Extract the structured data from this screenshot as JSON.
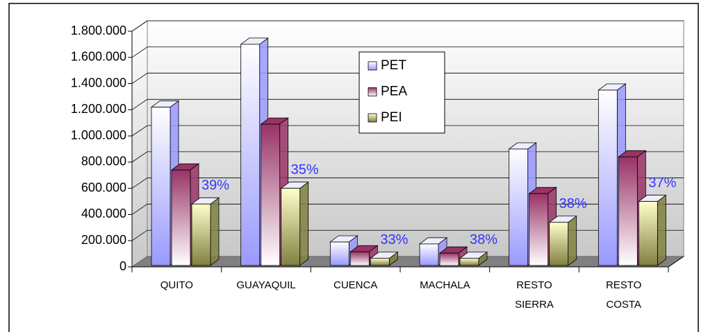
{
  "chart_data": {
    "type": "bar3d",
    "categories": [
      "QUITO",
      "GUAYAQUIL",
      "CUENCA",
      "MACHALA",
      "RESTO SIERRA",
      "RESTO COSTA"
    ],
    "series": [
      {
        "name": "PET",
        "color": "#9999ff",
        "values": [
          1220000,
          1700000,
          190000,
          175000,
          900000,
          1350000
        ]
      },
      {
        "name": "PEA",
        "color": "#993366",
        "values": [
          740000,
          1090000,
          115000,
          105000,
          560000,
          840000
        ]
      },
      {
        "name": "PEI",
        "color": "#808040",
        "values": [
          480000,
          600000,
          65000,
          65000,
          340000,
          500000
        ]
      }
    ],
    "annotations": [
      "39%",
      "35%",
      "33%",
      "38%",
      "38%",
      "37%"
    ],
    "annotation_color": "#3333ff",
    "ylim": [
      0,
      1800000
    ],
    "yticks": [
      0,
      {
        "value": 200000,
        "label": "200.000"
      },
      {
        "value": 400000,
        "label": "400.000"
      },
      {
        "value": 600000,
        "label": "600.000"
      },
      {
        "value": 800000,
        "label": "800.000"
      },
      {
        "value": 1000000,
        "label": "1.000.000"
      },
      {
        "value": 1200000,
        "label": "1.200.000"
      },
      {
        "value": 1400000,
        "label": "1.400.000"
      },
      {
        "value": 1600000,
        "label": "1.600.000"
      },
      {
        "value": 1800000,
        "label": "1.800.000"
      }
    ],
    "grid": true
  }
}
